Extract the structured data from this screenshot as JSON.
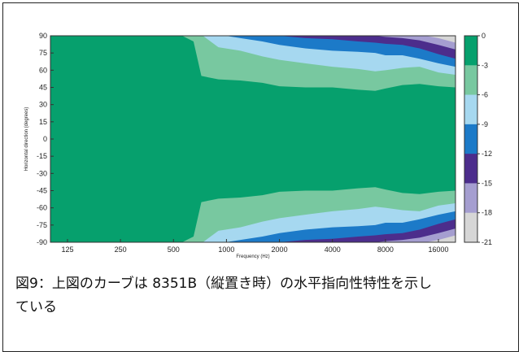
{
  "chart_data": {
    "type": "contour",
    "xlabel": "Frequency (Hz)",
    "ylabel": "Horizontal direction (degrees)",
    "x_ticks": [
      "125",
      "250",
      "500",
      "1000",
      "2000",
      "4000",
      "8000",
      "16000"
    ],
    "y_ticks": [
      "90",
      "75",
      "60",
      "45",
      "30",
      "15",
      "0",
      "-15",
      "-30",
      "-45",
      "-60",
      "-75",
      "-90"
    ],
    "ylim": [
      -90,
      90
    ],
    "x_scale": "log",
    "colorbar": {
      "ticks": [
        "0",
        "-3",
        "-6",
        "-9",
        "-12",
        "-15",
        "-18",
        "-21"
      ],
      "levels": [
        {
          "range": "0 to -3",
          "color": "#06a06d"
        },
        {
          "range": "-3 to -6",
          "color": "#78c8a0"
        },
        {
          "range": "-6 to -9",
          "color": "#a6d8f0"
        },
        {
          "range": "-9 to -12",
          "color": "#1c7ac8"
        },
        {
          "range": "-12 to -15",
          "color": "#4c2d8c"
        },
        {
          "range": "-15 to -18",
          "color": "#a59ed0"
        },
        {
          "range": "-18 to -21",
          "color": "#d6d6d6"
        }
      ]
    },
    "contour_edges_deg": {
      "note": "upper boundary angle (degrees) of each level vs frequency; symmetric about 0",
      "freqs_hz": [
        100,
        300,
        420,
        560,
        650,
        720,
        900,
        1200,
        1600,
        2000,
        2800,
        4000,
        5600,
        7000,
        8000,
        10000,
        12500,
        16000,
        20000
      ],
      "level_-3": [
        90,
        90,
        90,
        90,
        85,
        55,
        52,
        51,
        49,
        46,
        45,
        45,
        43,
        42,
        44,
        47,
        48,
        46,
        45
      ],
      "level_-6": [
        91,
        91,
        91,
        91,
        91,
        91,
        80,
        77,
        72,
        69,
        66,
        63,
        61,
        59,
        60,
        62,
        63,
        58,
        56
      ],
      "level_-9": [
        91,
        91,
        91,
        91,
        91,
        91,
        91,
        88,
        85,
        82,
        79,
        77,
        76,
        75,
        73,
        73,
        70,
        66,
        63
      ],
      "level_-12": [
        91,
        91,
        91,
        91,
        91,
        91,
        91,
        91,
        91,
        90,
        88,
        87,
        85,
        84,
        83,
        82,
        79,
        74,
        70
      ],
      "level_-15": [
        91,
        91,
        91,
        91,
        91,
        91,
        91,
        91,
        91,
        91,
        91,
        91,
        91,
        90,
        89,
        88,
        86,
        82,
        78
      ],
      "level_-18": [
        91,
        91,
        91,
        91,
        91,
        91,
        91,
        91,
        91,
        91,
        91,
        91,
        91,
        91,
        91,
        91,
        91,
        88,
        84
      ]
    }
  },
  "caption_line1": "図9：上図のカーブは 8351B（縦置き時）の水平指向性特性を示し",
  "caption_line2": "ている"
}
